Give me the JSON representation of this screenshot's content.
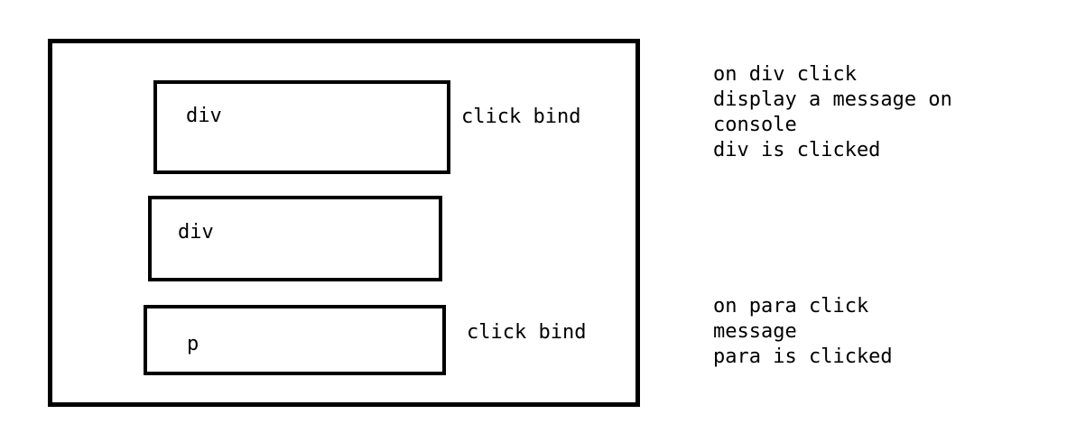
{
  "diagram": {
    "boxes": [
      {
        "label": "div",
        "annotation": "click bind"
      },
      {
        "label": "div",
        "annotation": ""
      },
      {
        "label": "p",
        "annotation": "click bind"
      }
    ],
    "notes": {
      "div_click": [
        "on div click",
        "display a message on",
        "console",
        "div is clicked"
      ],
      "para_click": [
        "on para click",
        "message",
        "para is clicked"
      ]
    }
  }
}
